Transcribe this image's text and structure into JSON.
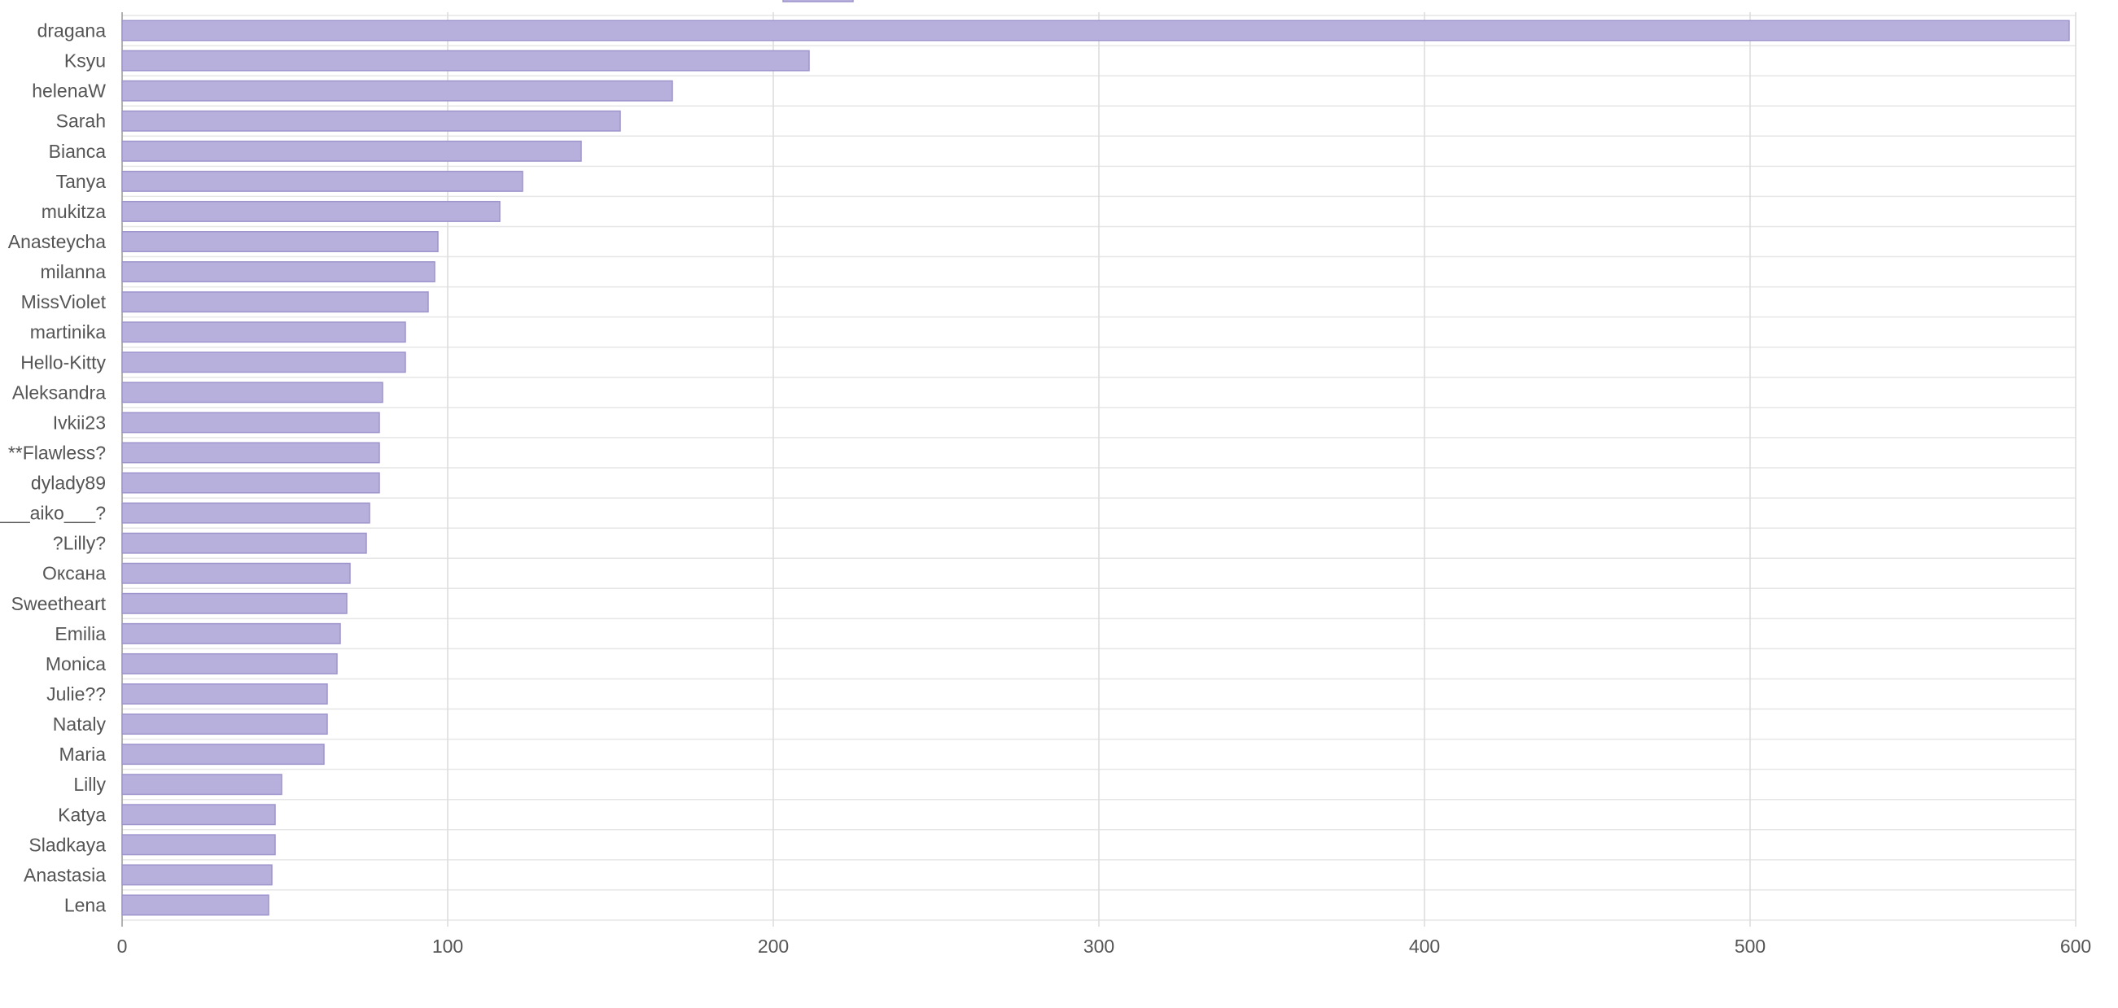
{
  "chart_data": {
    "type": "bar",
    "orientation": "horizontal",
    "categories": [
      "dragana",
      "Ksyu",
      "helenaW",
      "Sarah",
      "Bianca",
      "Tanya",
      "mukitza",
      "Anasteycha",
      "milanna",
      "MissViolet",
      "martinika",
      "Hello-Kitty",
      "Aleksandra",
      "Ivkii23",
      "**Flawless?",
      "dylady89",
      "___aiko___?",
      "?Lilly?",
      "Оксана",
      "Sweetheart",
      "Emilia",
      "Monica",
      "Julie??",
      "Nataly",
      "Maria",
      "Lilly",
      "Katya",
      "Sladkaya",
      "Anastasia",
      "Lena"
    ],
    "values": [
      598,
      211,
      169,
      153,
      141,
      123,
      116,
      97,
      96,
      94,
      87,
      87,
      80,
      79,
      79,
      79,
      76,
      75,
      70,
      69,
      67,
      66,
      63,
      63,
      62,
      49,
      47,
      47,
      46,
      45
    ],
    "xlim": [
      0,
      600
    ],
    "xticks": [
      "0",
      "100",
      "200",
      "300",
      "400",
      "500",
      "600"
    ],
    "grid": true,
    "bar_color": "#b7b0dd",
    "bar_border_color": "#9d95cc",
    "title": "",
    "xlabel": "",
    "ylabel": ""
  }
}
